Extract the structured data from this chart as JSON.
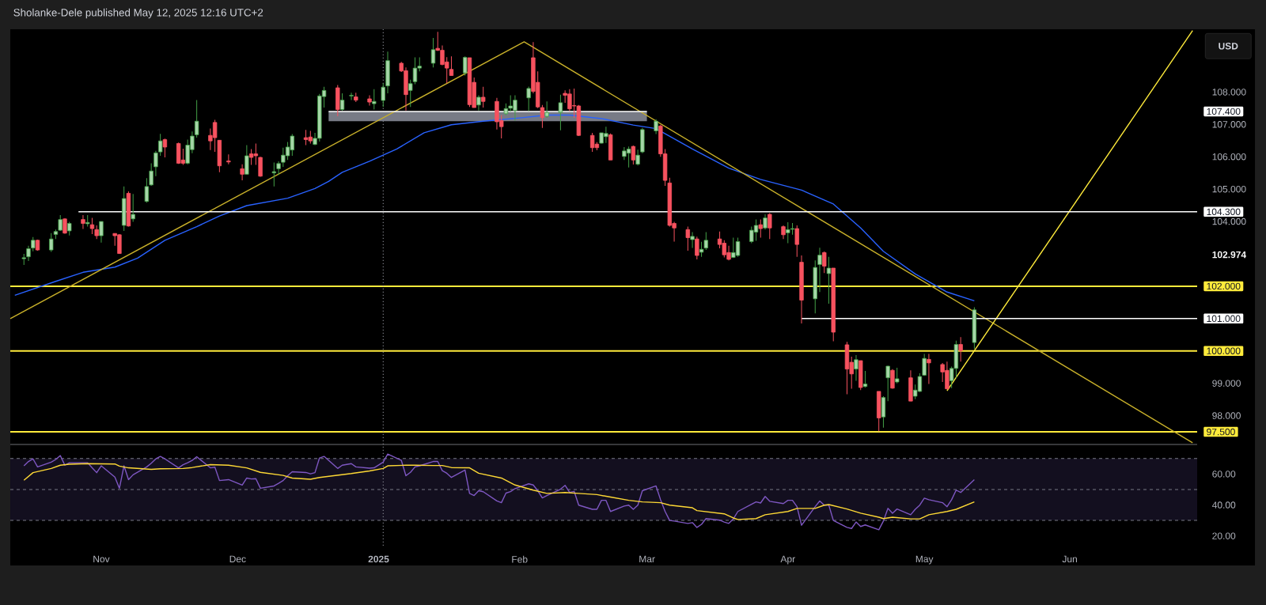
{
  "chart_data": [
    {
      "type": "candlestick",
      "title": "Sholanke-Dele published May 12, 2025 12:16 UTC+2",
      "x": [
        "2024-10-15",
        "2024-10-16",
        "2024-10-17",
        "2024-10-18",
        "2024-10-21",
        "2024-10-22",
        "2024-10-23",
        "2024-10-24",
        "2024-10-25",
        "2024-10-28",
        "2024-10-29",
        "2024-10-30",
        "2024-10-31",
        "2024-11-01",
        "2024-11-04",
        "2024-11-05",
        "2024-11-06",
        "2024-11-07",
        "2024-11-08",
        "2024-11-11",
        "2024-11-12",
        "2024-11-13",
        "2024-11-14",
        "2024-11-15",
        "2024-11-18",
        "2024-11-19",
        "2024-11-20",
        "2024-11-21",
        "2024-11-22",
        "2024-11-25",
        "2024-11-26",
        "2024-11-27",
        "2024-11-29",
        "2024-12-02",
        "2024-12-03",
        "2024-12-04",
        "2024-12-05",
        "2024-12-06",
        "2024-12-09",
        "2024-12-10",
        "2024-12-11",
        "2024-12-12",
        "2024-12-13",
        "2024-12-16",
        "2024-12-17",
        "2024-12-18",
        "2024-12-19",
        "2024-12-20",
        "2024-12-23",
        "2024-12-24",
        "2024-12-26",
        "2024-12-27",
        "2024-12-30",
        "2024-12-31",
        "2025-01-02",
        "2025-01-03",
        "2025-01-06",
        "2025-01-07",
        "2025-01-08",
        "2025-01-09",
        "2025-01-10",
        "2025-01-13",
        "2025-01-14",
        "2025-01-15",
        "2025-01-16",
        "2025-01-17",
        "2025-01-20",
        "2025-01-21",
        "2025-01-22",
        "2025-01-23",
        "2025-01-24",
        "2025-01-27",
        "2025-01-28",
        "2025-01-29",
        "2025-01-30",
        "2025-01-31",
        "2025-02-03",
        "2025-02-04",
        "2025-02-05",
        "2025-02-06",
        "2025-02-07",
        "2025-02-10",
        "2025-02-11",
        "2025-02-12",
        "2025-02-13",
        "2025-02-14",
        "2025-02-17",
        "2025-02-18",
        "2025-02-19",
        "2025-02-20",
        "2025-02-21",
        "2025-02-24",
        "2025-02-25",
        "2025-02-26",
        "2025-02-27",
        "2025-02-28",
        "2025-03-03",
        "2025-03-04",
        "2025-03-05",
        "2025-03-06",
        "2025-03-07",
        "2025-03-10",
        "2025-03-11",
        "2025-03-12",
        "2025-03-13",
        "2025-03-14",
        "2025-03-17",
        "2025-03-18",
        "2025-03-19",
        "2025-03-20",
        "2025-03-21",
        "2025-03-24",
        "2025-03-25",
        "2025-03-26",
        "2025-03-27",
        "2025-03-28",
        "2025-03-31",
        "2025-04-01",
        "2025-04-02",
        "2025-04-03",
        "2025-04-04",
        "2025-04-07",
        "2025-04-08",
        "2025-04-09",
        "2025-04-10",
        "2025-04-11",
        "2025-04-14",
        "2025-04-15",
        "2025-04-16",
        "2025-04-17",
        "2025-04-18",
        "2025-04-21",
        "2025-04-22",
        "2025-04-23",
        "2025-04-24",
        "2025-04-25",
        "2025-04-28",
        "2025-04-29",
        "2025-04-30",
        "2025-05-01",
        "2025-05-02",
        "2025-05-05",
        "2025-05-06",
        "2025-05-07",
        "2025-05-08",
        "2025-05-09",
        "2025-05-12"
      ],
      "ohlc": [
        [
          102.85,
          103.0,
          102.66,
          102.88
        ],
        [
          102.91,
          103.25,
          102.78,
          103.16
        ],
        [
          103.18,
          103.52,
          103.08,
          103.42
        ],
        [
          103.42,
          103.44,
          103.1,
          103.12
        ],
        [
          103.12,
          103.64,
          103.06,
          103.46
        ],
        [
          103.6,
          103.75,
          103.46,
          103.69
        ],
        [
          103.73,
          104.2,
          103.71,
          104.06
        ],
        [
          104.08,
          104.1,
          103.62,
          103.64
        ],
        [
          103.71,
          103.99,
          103.57,
          103.94
        ],
        [
          104.06,
          104.2,
          103.77,
          103.94
        ],
        [
          103.93,
          104.2,
          103.84,
          103.97
        ],
        [
          103.9,
          104.11,
          103.61,
          103.78
        ],
        [
          103.75,
          103.88,
          103.46,
          103.56
        ],
        [
          103.56,
          104.0,
          103.35,
          104.0
        ],
        [
          103.63,
          103.63,
          103.25,
          103.56
        ],
        [
          103.59,
          103.61,
          103.0,
          103.01
        ],
        [
          103.88,
          105.08,
          103.71,
          104.71
        ],
        [
          104.87,
          104.93,
          103.84,
          103.86
        ],
        [
          104.08,
          104.85,
          103.99,
          104.22
        ],
        [
          104.62,
          105.34,
          104.58,
          105.08
        ],
        [
          105.13,
          105.8,
          105.1,
          105.56
        ],
        [
          105.69,
          106.18,
          105.4,
          106.12
        ],
        [
          106.15,
          106.71,
          106.03,
          106.49
        ],
        [
          106.53,
          106.56,
          105.98,
          106.3
        ],
        [
          106.41,
          106.44,
          105.78,
          105.8
        ],
        [
          105.9,
          106.25,
          105.75,
          105.8
        ],
        [
          105.8,
          106.53,
          105.77,
          106.36
        ],
        [
          106.22,
          106.78,
          106.11,
          106.64
        ],
        [
          106.68,
          107.75,
          106.59,
          107.1
        ],
        [
          106.66,
          106.87,
          106.21,
          106.49
        ],
        [
          107.06,
          107.14,
          106.15,
          106.59
        ],
        [
          106.51,
          106.51,
          105.52,
          105.72
        ],
        [
          105.87,
          106.07,
          105.77,
          105.84
        ],
        [
          105.63,
          105.77,
          105.27,
          105.46
        ],
        [
          105.46,
          106.36,
          105.46,
          106.03
        ],
        [
          106.09,
          106.24,
          105.75,
          105.98
        ],
        [
          106.09,
          106.41,
          105.75,
          106.03
        ],
        [
          105.98,
          106.0,
          105.38,
          105.4
        ],
        [
          105.5,
          105.82,
          105.08,
          105.54
        ],
        [
          105.63,
          105.86,
          105.44,
          105.79
        ],
        [
          105.83,
          106.28,
          105.69,
          106.05
        ],
        [
          106.03,
          106.46,
          105.9,
          106.3
        ],
        [
          106.21,
          106.7,
          106.03,
          106.64
        ],
        [
          106.59,
          106.83,
          106.36,
          106.53
        ],
        [
          106.61,
          106.8,
          106.41,
          106.49
        ],
        [
          106.38,
          106.74,
          106.36,
          106.57
        ],
        [
          106.57,
          107.94,
          106.47,
          107.88
        ],
        [
          107.86,
          108.16,
          107.52,
          108.05
        ],
        [
          108.13,
          108.22,
          107.25,
          107.46
        ],
        [
          107.46,
          107.96,
          107.42,
          107.75
        ],
        [
          107.88,
          107.98,
          107.75,
          107.9
        ],
        [
          107.85,
          107.98,
          107.69,
          107.75
        ],
        [
          107.79,
          107.9,
          107.58,
          107.69
        ],
        [
          107.64,
          108.09,
          107.46,
          107.71
        ],
        [
          107.74,
          108.27,
          107.54,
          108.15
        ],
        [
          108.19,
          109.25,
          107.96,
          108.97
        ],
        [
          108.89,
          108.93,
          108.62,
          108.65
        ],
        [
          108.66,
          108.76,
          107.43,
          107.92
        ],
        [
          108.05,
          108.38,
          107.54,
          108.26
        ],
        [
          108.32,
          109.07,
          108.24,
          108.74
        ],
        [
          108.74,
          109.07,
          108.64,
          108.8
        ],
        [
          108.89,
          109.67,
          108.76,
          109.31
        ],
        [
          109.35,
          109.86,
          109.27,
          109.29
        ],
        [
          109.29,
          109.44,
          108.83,
          108.85
        ],
        [
          108.93,
          109.08,
          108.27,
          108.74
        ],
        [
          108.7,
          109.1,
          108.51,
          108.51
        ],
        [
          108.59,
          109.1,
          108.51,
          109.07
        ],
        [
          109.06,
          109.06,
          107.54,
          107.61
        ],
        [
          108.3,
          108.45,
          107.52,
          107.52
        ],
        [
          107.6,
          107.9,
          107.43,
          107.84
        ],
        [
          107.84,
          108.16,
          107.52,
          107.71
        ],
        [
          107.71,
          107.82,
          106.84,
          107.08
        ],
        [
          107.12,
          107.29,
          106.57,
          106.93
        ],
        [
          107.33,
          107.65,
          107.29,
          107.49
        ],
        [
          107.5,
          107.9,
          107.4,
          107.57
        ],
        [
          107.43,
          107.9,
          107.12,
          107.75
        ],
        [
          107.82,
          108.17,
          107.41,
          108.11
        ],
        [
          109.06,
          109.54,
          107.96,
          108.02
        ],
        [
          108.3,
          108.64,
          107.5,
          107.54
        ],
        [
          107.52,
          107.6,
          106.89,
          107.21
        ],
        [
          107.25,
          107.71,
          107.2,
          107.37
        ],
        [
          107.37,
          107.92,
          106.82,
          107.67
        ],
        [
          107.96,
          108.05,
          107.67,
          107.9
        ],
        [
          107.94,
          108.09,
          107.41,
          107.48
        ],
        [
          107.58,
          108.11,
          107.2,
          107.57
        ],
        [
          107.57,
          107.6,
          106.64,
          106.66
        ],
        [
          106.66,
          106.74,
          106.15,
          106.28
        ],
        [
          106.39,
          106.45,
          106.2,
          106.28
        ],
        [
          106.42,
          106.74,
          106.41,
          106.74
        ],
        [
          106.62,
          106.93,
          106.43,
          106.72
        ],
        [
          106.68,
          106.72,
          105.9,
          105.9
        ],
        [
          106.01,
          106.3,
          105.9,
          106.18
        ],
        [
          106.11,
          106.32,
          105.67,
          106.24
        ],
        [
          106.32,
          106.35,
          105.76,
          105.9
        ],
        [
          105.77,
          106.22,
          105.73,
          106.05
        ],
        [
          106.15,
          106.89,
          106.11,
          106.84
        ],
        [
          106.8,
          107.16,
          106.7,
          107.1
        ],
        [
          106.95,
          106.99,
          106.0,
          106.09
        ],
        [
          106.09,
          106.24,
          105.1,
          105.27
        ],
        [
          105.19,
          105.35,
          103.84,
          103.88
        ],
        [
          103.94,
          103.99,
          103.38,
          103.8
        ],
        [
          103.75,
          103.84,
          103.1,
          103.5
        ],
        [
          103.44,
          103.67,
          103.18,
          103.54
        ],
        [
          103.46,
          103.53,
          102.83,
          102.95
        ],
        [
          103.05,
          103.37,
          102.91,
          103.14
        ],
        [
          103.18,
          103.67,
          103.12,
          103.42
        ],
        [
          103.46,
          103.69,
          103.17,
          103.29
        ],
        [
          103.33,
          103.42,
          102.89,
          102.97
        ],
        [
          103.04,
          103.25,
          102.8,
          102.83
        ],
        [
          102.89,
          103.5,
          102.87,
          103.04
        ],
        [
          102.95,
          103.5,
          102.91,
          103.38
        ],
        [
          103.38,
          103.84,
          103.33,
          103.73
        ],
        [
          103.67,
          104.06,
          103.4,
          103.88
        ],
        [
          103.9,
          104.06,
          103.5,
          103.78
        ],
        [
          103.8,
          104.22,
          103.75,
          104.11
        ],
        [
          104.22,
          104.26,
          103.46,
          103.8
        ],
        [
          103.84,
          103.88,
          103.46,
          103.59
        ],
        [
          103.65,
          103.98,
          103.33,
          103.75
        ],
        [
          103.76,
          103.95,
          103.59,
          103.78
        ],
        [
          103.78,
          103.88,
          102.91,
          103.29
        ],
        [
          102.74,
          102.95,
          100.85,
          101.57
        ],
        [
          101.61,
          102.8,
          101.16,
          102.58
        ],
        [
          102.67,
          103.19,
          101.82,
          102.96
        ],
        [
          103.04,
          103.07,
          102.41,
          102.62
        ],
        [
          102.39,
          102.91,
          101.46,
          102.56
        ],
        [
          102.56,
          102.56,
          100.3,
          100.58
        ],
        [
          100.19,
          100.28,
          98.66,
          99.44
        ],
        [
          99.65,
          99.82,
          98.83,
          99.29
        ],
        [
          99.44,
          99.87,
          99.08,
          99.73
        ],
        [
          99.7,
          99.7,
          98.79,
          98.87
        ],
        [
          98.9,
          99.38,
          98.87,
          98.98
        ],
        [
          98.75,
          98.75,
          97.52,
          97.93
        ],
        [
          97.96,
          98.6,
          97.63,
          98.56
        ],
        [
          99.17,
          99.54,
          98.45,
          99.53
        ],
        [
          99.4,
          99.44,
          98.83,
          98.85
        ],
        [
          99.04,
          99.48,
          99.0,
          99.14
        ],
        [
          99.17,
          99.4,
          98.45,
          98.45
        ],
        [
          98.6,
          98.96,
          98.51,
          98.79
        ],
        [
          98.75,
          99.31,
          98.73,
          99.21
        ],
        [
          99.25,
          99.91,
          99.23,
          99.77
        ],
        [
          99.74,
          99.91,
          98.98,
          99.63
        ],
        [
          99.58,
          99.63,
          99.04,
          99.35
        ],
        [
          99.4,
          99.67,
          98.81,
          98.83
        ],
        [
          99.08,
          99.52,
          98.85,
          99.46
        ],
        [
          99.46,
          100.32,
          99.17,
          100.2
        ],
        [
          100.2,
          100.43,
          99.67,
          100.01
        ],
        [
          100.26,
          101.35,
          100.07,
          101.27
        ]
      ],
      "series": [
        {
          "type": "line",
          "color": "#2962ff",
          "x": [
            "2024-10-13",
            "2024-10-22",
            "2024-10-28",
            "2024-11-04",
            "2024-11-09",
            "2024-11-15",
            "2024-11-22",
            "2024-11-27",
            "2024-12-03",
            "2024-12-12",
            "2024-12-18",
            "2024-12-21",
            "2024-12-24",
            "2024-12-30",
            "2025-01-05",
            "2025-01-11",
            "2025-01-17",
            "2025-01-24",
            "2025-02-01",
            "2025-02-07",
            "2025-02-12",
            "2025-02-19",
            "2025-02-26",
            "2025-03-03",
            "2025-03-11",
            "2025-03-19",
            "2025-03-26",
            "2025-04-04",
            "2025-04-11",
            "2025-04-17",
            "2025-04-22",
            "2025-04-29",
            "2025-05-06",
            "2025-05-12"
          ],
          "values": [
            101.72,
            102.15,
            102.43,
            102.59,
            102.87,
            103.42,
            103.84,
            104.17,
            104.49,
            104.72,
            105.02,
            105.24,
            105.52,
            105.86,
            106.24,
            106.74,
            106.99,
            107.1,
            107.2,
            107.29,
            107.29,
            107.18,
            106.98,
            106.87,
            106.24,
            105.65,
            105.3,
            104.97,
            104.54,
            103.8,
            103.08,
            102.38,
            101.82,
            101.55
          ]
        },
        {
          "type": "line",
          "color": "#c9b12a",
          "x": [
            "2024-10-12",
            "2025-02-02",
            "2025-06-29"
          ],
          "values": [
            101.0,
            109.55,
            97.16
          ]
        },
        {
          "type": "line",
          "color": "#ffeb3b",
          "x": [
            "2025-05-06",
            "2025-06-29"
          ],
          "values": [
            98.77,
            109.9
          ]
        },
        {
          "type": "line",
          "name": "104.300",
          "color": "#ffffff",
          "x": [
            "2024-10-27",
            "2025-06-30"
          ],
          "values": [
            104.3,
            104.3
          ]
        },
        {
          "type": "line",
          "name": "107.400",
          "color": "#ffffff",
          "x": [
            "2024-12-21",
            "2025-03-01"
          ],
          "values": [
            107.4,
            107.4
          ],
          "lower": [
            107.1,
            107.1
          ],
          "upper": [
            107.4,
            107.4
          ]
        },
        {
          "type": "line",
          "name": "101.000",
          "color": "#ffffff",
          "x": [
            "2025-04-04",
            "2025-06-30"
          ],
          "values": [
            101.0,
            101.0
          ]
        }
      ],
      "ref_lines": [
        {
          "axis": "y",
          "value": 102,
          "label": "102.000",
          "color": "#ffeb3b"
        },
        {
          "axis": "y",
          "value": 100,
          "label": "100.000",
          "color": "#ffeb3b"
        },
        {
          "axis": "y",
          "value": 97.5,
          "label": "97.500",
          "color": "#ffeb3b"
        },
        {
          "axis": "x",
          "value": "2025-01-02",
          "color": "#9598a1",
          "line_style": "dotted"
        }
      ],
      "annotations": [
        "USD"
      ],
      "xlim": [
        "2024-10-12",
        "2025-06-30"
      ],
      "ylim": [
        97.11,
        109.94
      ],
      "yticks": [
        {
          "value": 98,
          "label": "98.000"
        },
        {
          "value": 99,
          "label": "99.000"
        },
        {
          "value": 102.974,
          "label": "102.974"
        },
        {
          "value": 104,
          "label": "104.000"
        },
        {
          "value": 105,
          "label": "105.000"
        },
        {
          "value": 106,
          "label": "106.000"
        },
        {
          "value": 107,
          "label": "107.000"
        },
        {
          "value": 108,
          "label": "108.000"
        }
      ],
      "tick_labels": "y"
    },
    {
      "type": "line",
      "x": [
        "2024-10-15",
        "2024-10-16",
        "2024-10-17",
        "2024-10-18",
        "2024-10-21",
        "2024-10-22",
        "2024-10-23",
        "2024-10-24",
        "2024-10-25",
        "2024-10-28",
        "2024-10-29",
        "2024-10-30",
        "2024-10-31",
        "2024-11-01",
        "2024-11-04",
        "2024-11-05",
        "2024-11-06",
        "2024-11-07",
        "2024-11-08",
        "2024-11-11",
        "2024-11-12",
        "2024-11-13",
        "2024-11-14",
        "2024-11-15",
        "2024-11-18",
        "2024-11-19",
        "2024-11-20",
        "2024-11-21",
        "2024-11-22",
        "2024-11-25",
        "2024-11-26",
        "2024-11-27",
        "2024-11-29",
        "2024-12-02",
        "2024-12-03",
        "2024-12-04",
        "2024-12-05",
        "2024-12-06",
        "2024-12-09",
        "2024-12-10",
        "2024-12-11",
        "2024-12-12",
        "2024-12-13",
        "2024-12-16",
        "2024-12-17",
        "2024-12-18",
        "2024-12-19",
        "2024-12-20",
        "2024-12-23",
        "2024-12-24",
        "2024-12-26",
        "2024-12-27",
        "2024-12-30",
        "2024-12-31",
        "2025-01-02",
        "2025-01-03",
        "2025-01-06",
        "2025-01-07",
        "2025-01-08",
        "2025-01-09",
        "2025-01-10",
        "2025-01-13",
        "2025-01-14",
        "2025-01-15",
        "2025-01-16",
        "2025-01-17",
        "2025-01-20",
        "2025-01-21",
        "2025-01-22",
        "2025-01-23",
        "2025-01-24",
        "2025-01-27",
        "2025-01-28",
        "2025-01-29",
        "2025-01-30",
        "2025-01-31",
        "2025-02-03",
        "2025-02-04",
        "2025-02-05",
        "2025-02-06",
        "2025-02-07",
        "2025-02-10",
        "2025-02-11",
        "2025-02-12",
        "2025-02-13",
        "2025-02-14",
        "2025-02-17",
        "2025-02-18",
        "2025-02-19",
        "2025-02-20",
        "2025-02-21",
        "2025-02-24",
        "2025-02-25",
        "2025-02-26",
        "2025-02-27",
        "2025-02-28",
        "2025-03-03",
        "2025-03-04",
        "2025-03-05",
        "2025-03-06",
        "2025-03-07",
        "2025-03-10",
        "2025-03-11",
        "2025-03-12",
        "2025-03-13",
        "2025-03-14",
        "2025-03-17",
        "2025-03-18",
        "2025-03-19",
        "2025-03-20",
        "2025-03-21",
        "2025-03-24",
        "2025-03-25",
        "2025-03-26",
        "2025-03-27",
        "2025-03-28",
        "2025-03-31",
        "2025-04-01",
        "2025-04-02",
        "2025-04-03",
        "2025-04-04",
        "2025-04-07",
        "2025-04-08",
        "2025-04-09",
        "2025-04-10",
        "2025-04-11",
        "2025-04-14",
        "2025-04-15",
        "2025-04-16",
        "2025-04-17",
        "2025-04-18",
        "2025-04-21",
        "2025-04-22",
        "2025-04-23",
        "2025-04-24",
        "2025-04-25",
        "2025-04-28",
        "2025-04-29",
        "2025-04-30",
        "2025-05-01",
        "2025-05-02",
        "2025-05-05",
        "2025-05-06",
        "2025-05-07",
        "2025-05-08",
        "2025-05-09",
        "2025-05-12"
      ],
      "series": [
        {
          "color": "#7e57c2",
          "values": [
            65.3,
            68.1,
            69.8,
            64.6,
            67.7,
            69.4,
            71.9,
            65.7,
            67.3,
            67.3,
            67.3,
            64.0,
            60.9,
            65.3,
            58.0,
            50.8,
            65.3,
            56.4,
            59.5,
            64.6,
            67.0,
            69.8,
            71.4,
            69.8,
            64.0,
            66.0,
            67.3,
            68.8,
            71.2,
            64.0,
            64.4,
            55.8,
            56.4,
            52.9,
            57.4,
            56.8,
            57.0,
            50.8,
            52.3,
            54.0,
            55.8,
            58.9,
            61.5,
            61.0,
            60.1,
            60.9,
            70.4,
            71.4,
            63.6,
            65.7,
            66.7,
            64.6,
            63.8,
            64.0,
            67.7,
            72.9,
            68.8,
            58.9,
            61.1,
            64.6,
            65.3,
            68.1,
            68.1,
            62.2,
            60.5,
            57.8,
            62.6,
            47.5,
            46.1,
            49.2,
            48.6,
            42.6,
            41.5,
            47.7,
            48.6,
            50.6,
            53.7,
            52.9,
            49.2,
            44.6,
            46.1,
            50.2,
            52.7,
            48.1,
            48.8,
            39.9,
            37.2,
            37.2,
            43.0,
            43.0,
            35.8,
            39.3,
            39.9,
            37.2,
            39.9,
            49.2,
            52.3,
            43.4,
            35.8,
            30.0,
            29.6,
            28.1,
            28.6,
            25.5,
            27.5,
            31.2,
            30.2,
            29.0,
            28.1,
            31.0,
            35.8,
            40.5,
            42.0,
            41.3,
            45.5,
            42.4,
            40.9,
            43.0,
            43.0,
            38.9,
            26.9,
            38.9,
            42.6,
            39.9,
            39.9,
            30.0,
            25.5,
            24.8,
            29.0,
            26.1,
            27.1,
            24.0,
            29.6,
            37.8,
            34.7,
            37.4,
            33.7,
            37.2,
            39.9,
            44.4,
            43.4,
            41.5,
            38.9,
            43.4,
            49.6,
            48.1,
            56.4
          ]
        },
        {
          "color": "#fdd835",
          "x": [
            "2024-10-15",
            "2024-10-17",
            "2024-10-21",
            "2024-10-23",
            "2024-10-25",
            "2024-10-29",
            "2024-11-04",
            "2024-11-05",
            "2024-11-07",
            "2024-11-12",
            "2024-11-14",
            "2024-11-19",
            "2024-11-21",
            "2024-11-25",
            "2024-11-29",
            "2024-12-03",
            "2024-12-06",
            "2024-12-11",
            "2024-12-13",
            "2024-12-17",
            "2024-12-19",
            "2024-12-26",
            "2024-12-30",
            "2025-01-02",
            "2025-01-03",
            "2025-01-07",
            "2025-01-09",
            "2025-01-13",
            "2025-01-15",
            "2025-01-17",
            "2025-01-21",
            "2025-01-23",
            "2025-01-28",
            "2025-01-31",
            "2025-02-04",
            "2025-02-07",
            "2025-02-11",
            "2025-02-14",
            "2025-02-18",
            "2025-02-21",
            "2025-02-25",
            "2025-02-28",
            "2025-03-04",
            "2025-03-06",
            "2025-03-11",
            "2025-03-12",
            "2025-03-18",
            "2025-03-20",
            "2025-03-21",
            "2025-03-25",
            "2025-03-27",
            "2025-04-01",
            "2025-04-03",
            "2025-04-07",
            "2025-04-09",
            "2025-04-10",
            "2025-04-14",
            "2025-04-17",
            "2025-04-21",
            "2025-04-22",
            "2025-04-24",
            "2025-04-28",
            "2025-04-30",
            "2025-05-02",
            "2025-05-06",
            "2025-05-08",
            "2025-05-12"
          ],
          "values": [
            56.0,
            60.9,
            63.6,
            65.7,
            66.3,
            66.7,
            66.5,
            65.1,
            64.0,
            63.0,
            63.4,
            63.6,
            64.2,
            66.1,
            65.7,
            64.0,
            61.1,
            59.1,
            57.4,
            56.6,
            57.8,
            60.3,
            62.0,
            63.6,
            65.3,
            65.7,
            65.7,
            65.5,
            65.5,
            64.2,
            64.0,
            60.5,
            57.4,
            52.9,
            49.6,
            47.5,
            48.1,
            47.5,
            46.7,
            45.1,
            43.0,
            42.0,
            41.5,
            39.9,
            38.2,
            36.4,
            34.3,
            31.6,
            30.6,
            31.2,
            33.7,
            35.8,
            37.8,
            37.8,
            39.9,
            40.3,
            37.4,
            34.7,
            32.1,
            31.2,
            32.1,
            31.0,
            31.0,
            33.7,
            35.8,
            37.2,
            42.0
          ]
        }
      ],
      "bands": [
        {
          "axis": "y",
          "from": 30,
          "to": 70,
          "color": "#130f1f"
        }
      ],
      "ref_lines": [
        {
          "axis": "y",
          "value": 70,
          "color": "#787b86",
          "line_style": "dashed"
        },
        {
          "axis": "y",
          "value": 50,
          "color": "#787b86",
          "line_style": "dashed"
        },
        {
          "axis": "y",
          "value": 30,
          "color": "#787b86",
          "line_style": "dashed"
        },
        {
          "axis": "x",
          "value": "2025-01-02",
          "color": "#9598a1",
          "line_style": "dotted"
        }
      ],
      "xlim": [
        "2024-10-12",
        "2025-06-30"
      ],
      "ylim": [
        13.7,
        78.6
      ],
      "xticks": [
        {
          "value": "2024-11-01",
          "label": "Nov"
        },
        {
          "value": "2024-12-01",
          "label": "Dec"
        },
        {
          "value": "2025-01-01",
          "label": "2025"
        },
        {
          "value": "2025-02-01",
          "label": "Feb"
        },
        {
          "value": "2025-03-01",
          "label": "Mar"
        },
        {
          "value": "2025-04-01",
          "label": "Apr"
        },
        {
          "value": "2025-05-01",
          "label": "May"
        },
        {
          "value": "2025-06-02",
          "label": "Jun"
        }
      ],
      "yticks": [
        {
          "value": 20,
          "label": "20.00"
        },
        {
          "value": 40,
          "label": "40.00"
        },
        {
          "value": 60,
          "label": "60.00"
        }
      ]
    }
  ]
}
